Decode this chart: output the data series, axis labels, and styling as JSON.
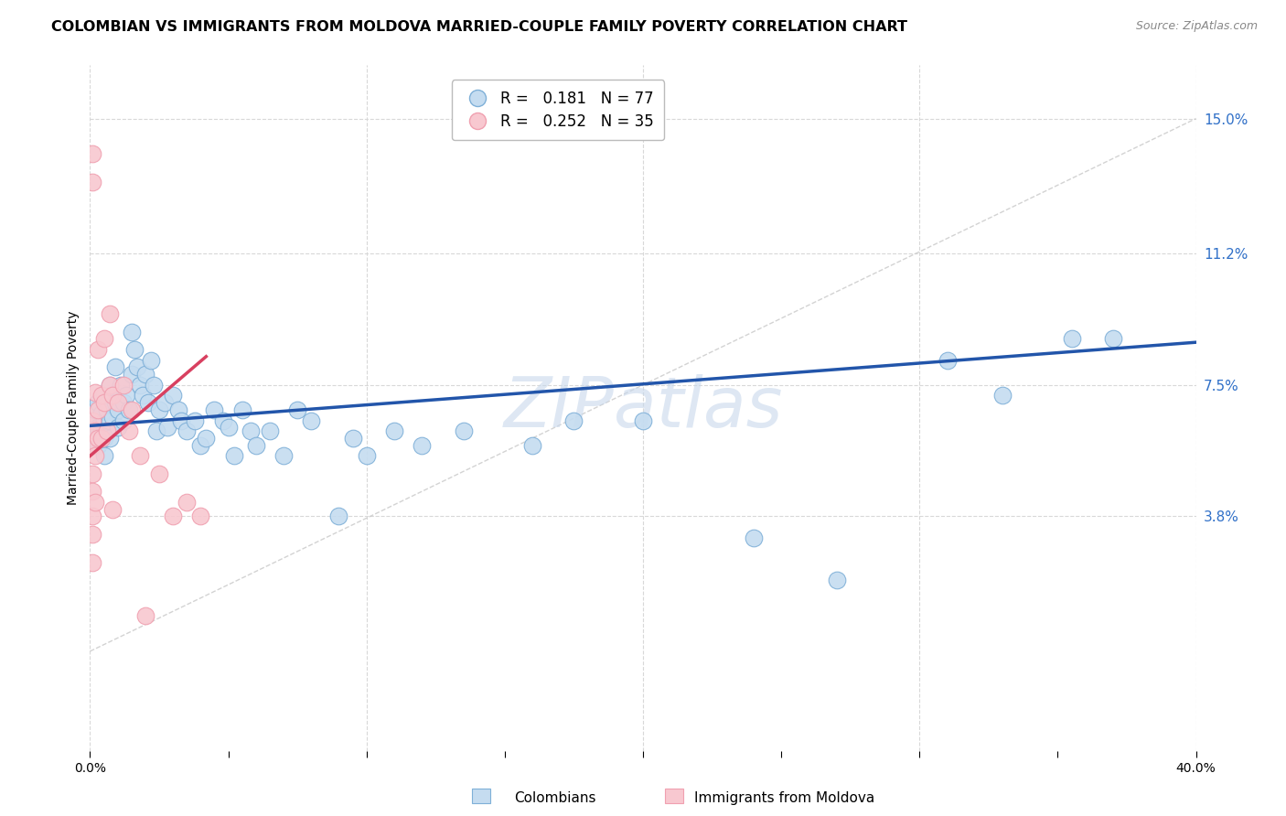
{
  "title": "COLOMBIAN VS IMMIGRANTS FROM MOLDOVA MARRIED-COUPLE FAMILY POVERTY CORRELATION CHART",
  "source": "Source: ZipAtlas.com",
  "ylabel": "Married-Couple Family Poverty",
  "xlim": [
    0.0,
    0.4
  ],
  "ylim": [
    -0.028,
    0.165
  ],
  "right_yticks": [
    0.038,
    0.075,
    0.112,
    0.15
  ],
  "right_yticklabels": [
    "3.8%",
    "7.5%",
    "11.2%",
    "15.0%"
  ],
  "blue_color": "#7fb0d8",
  "pink_color": "#f0a0b0",
  "blue_fill": "#c5dcf0",
  "pink_fill": "#f8c8d0",
  "blue_line_color": "#2255aa",
  "pink_line_color": "#d84060",
  "ref_line_color": "#c8c8c8",
  "grid_color": "#d8d8d8",
  "watermark": "ZIPatlas",
  "watermark_color": "#c8d8ec",
  "colombian_x": [
    0.001,
    0.001,
    0.002,
    0.002,
    0.002,
    0.003,
    0.003,
    0.003,
    0.004,
    0.004,
    0.005,
    0.005,
    0.005,
    0.005,
    0.006,
    0.006,
    0.007,
    0.007,
    0.007,
    0.008,
    0.008,
    0.009,
    0.009,
    0.01,
    0.01,
    0.011,
    0.012,
    0.012,
    0.013,
    0.014,
    0.015,
    0.015,
    0.016,
    0.017,
    0.018,
    0.019,
    0.02,
    0.021,
    0.022,
    0.023,
    0.024,
    0.025,
    0.027,
    0.028,
    0.03,
    0.032,
    0.033,
    0.035,
    0.038,
    0.04,
    0.042,
    0.045,
    0.048,
    0.05,
    0.052,
    0.055,
    0.058,
    0.06,
    0.065,
    0.07,
    0.075,
    0.08,
    0.09,
    0.095,
    0.1,
    0.11,
    0.12,
    0.135,
    0.16,
    0.175,
    0.2,
    0.24,
    0.27,
    0.31,
    0.33,
    0.355,
    0.37
  ],
  "colombian_y": [
    0.065,
    0.06,
    0.068,
    0.062,
    0.058,
    0.07,
    0.063,
    0.058,
    0.067,
    0.062,
    0.072,
    0.065,
    0.06,
    0.055,
    0.068,
    0.063,
    0.075,
    0.065,
    0.06,
    0.072,
    0.066,
    0.08,
    0.07,
    0.068,
    0.063,
    0.075,
    0.07,
    0.065,
    0.072,
    0.068,
    0.09,
    0.078,
    0.085,
    0.08,
    0.075,
    0.072,
    0.078,
    0.07,
    0.082,
    0.075,
    0.062,
    0.068,
    0.07,
    0.063,
    0.072,
    0.068,
    0.065,
    0.062,
    0.065,
    0.058,
    0.06,
    0.068,
    0.065,
    0.063,
    0.055,
    0.068,
    0.062,
    0.058,
    0.062,
    0.055,
    0.068,
    0.065,
    0.038,
    0.06,
    0.055,
    0.062,
    0.058,
    0.062,
    0.058,
    0.065,
    0.065,
    0.032,
    0.02,
    0.082,
    0.072,
    0.088,
    0.088
  ],
  "moldova_x": [
    0.001,
    0.001,
    0.001,
    0.001,
    0.001,
    0.001,
    0.001,
    0.001,
    0.001,
    0.002,
    0.002,
    0.002,
    0.002,
    0.003,
    0.003,
    0.003,
    0.004,
    0.004,
    0.005,
    0.005,
    0.006,
    0.007,
    0.007,
    0.008,
    0.008,
    0.01,
    0.012,
    0.014,
    0.015,
    0.018,
    0.02,
    0.025,
    0.03,
    0.035,
    0.04
  ],
  "moldova_y": [
    0.14,
    0.132,
    0.065,
    0.058,
    0.05,
    0.045,
    0.038,
    0.033,
    0.025,
    0.073,
    0.062,
    0.055,
    0.042,
    0.085,
    0.068,
    0.06,
    0.072,
    0.06,
    0.088,
    0.07,
    0.062,
    0.095,
    0.075,
    0.072,
    0.04,
    0.07,
    0.075,
    0.062,
    0.068,
    0.055,
    0.01,
    0.05,
    0.038,
    0.042,
    0.038
  ]
}
